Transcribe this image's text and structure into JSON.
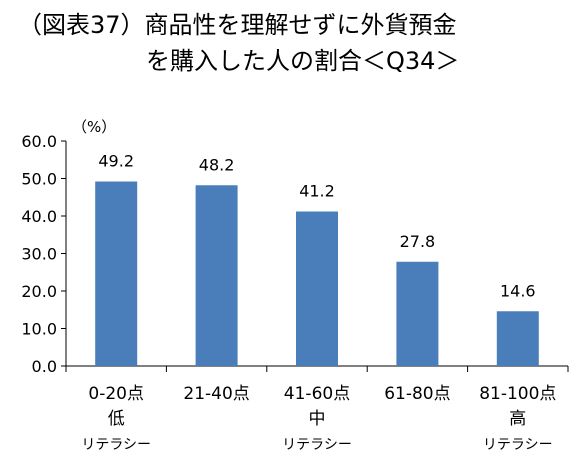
{
  "title_line1": "（図表37）商品性を理解せずに外貨預金",
  "title_line2": "を購入した人の割合＜Q34＞",
  "chart_data": {
    "type": "bar",
    "title": "（図表37）商品性を理解せずに外貨預金を購入した人の割合＜Q34＞",
    "ylabel": "（%）",
    "ylim": [
      0,
      60
    ],
    "yticks": [
      "0.0",
      "10.0",
      "20.0",
      "30.0",
      "40.0",
      "50.0",
      "60.0"
    ],
    "grid": false,
    "legend": "none",
    "bar_color": "#4a7ebb",
    "categories": [
      {
        "label": "0-20点",
        "sub1": "低",
        "sub2": "リテラシー"
      },
      {
        "label": "21-40点",
        "sub1": "",
        "sub2": ""
      },
      {
        "label": "41-60点",
        "sub1": "中",
        "sub2": "リテラシー"
      },
      {
        "label": "61-80点",
        "sub1": "",
        "sub2": ""
      },
      {
        "label": "81-100点",
        "sub1": "高",
        "sub2": "リテラシー"
      }
    ],
    "values": [
      49.2,
      48.2,
      41.2,
      27.8,
      14.6
    ],
    "data_labels": [
      "49.2",
      "48.2",
      "41.2",
      "27.8",
      "14.6"
    ]
  }
}
